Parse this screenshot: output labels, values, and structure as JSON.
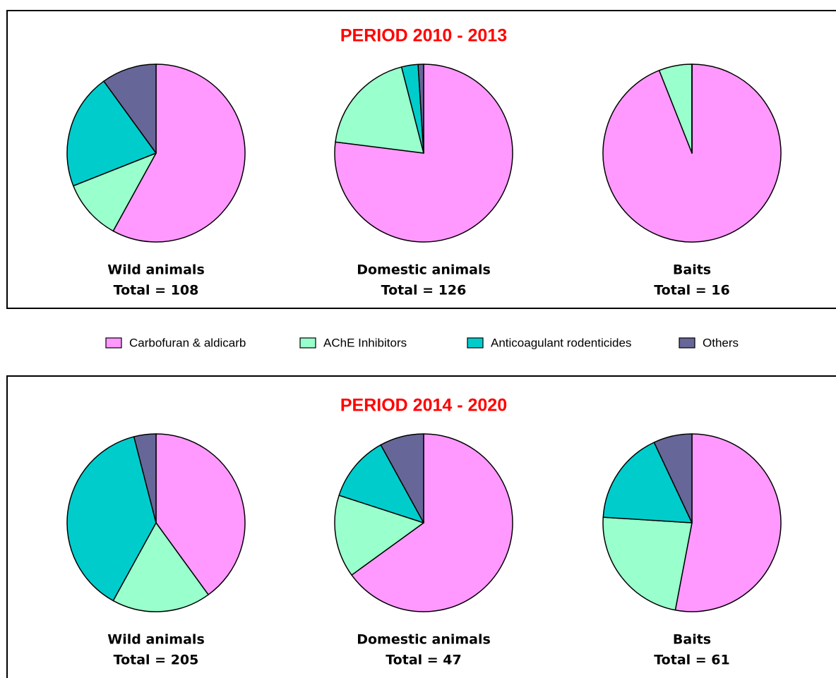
{
  "periods": [
    "PERIOD 2010 - 2013",
    "PERIOD 2014 - 2020"
  ],
  "chart_data": [
    {
      "type": "pie",
      "title": "Wild animals",
      "subtitle": "Total = 108",
      "categories": [
        "Carbofuran & aldicarb",
        "AChE Inhibitors",
        "Anticoagulant rodenticides",
        "Others"
      ],
      "colors": [
        "#ff99ff",
        "#99ffcc",
        "#00cccc",
        "#666699"
      ],
      "values": [
        58,
        11,
        21,
        10
      ]
    },
    {
      "type": "pie",
      "title": "Domestic animals",
      "subtitle": "Total = 126",
      "categories": [
        "Carbofuran & aldicarb",
        "AChE Inhibitors",
        "Anticoagulant rodenticides",
        "Others"
      ],
      "colors": [
        "#ff99ff",
        "#99ffcc",
        "#00cccc",
        "#666699"
      ],
      "values": [
        77,
        19,
        3,
        1
      ]
    },
    {
      "type": "pie",
      "title": "Baits",
      "subtitle": "Total = 16",
      "categories": [
        "Carbofuran & aldicarb",
        "AChE Inhibitors",
        "Anticoagulant rodenticides",
        "Others"
      ],
      "colors": [
        "#ff99ff",
        "#99ffcc",
        "#00cccc",
        "#666699"
      ],
      "values": [
        94,
        6,
        0,
        0
      ]
    },
    {
      "type": "pie",
      "title": "Wild animals",
      "subtitle": "Total = 205",
      "categories": [
        "Carbofuran & aldicarb",
        "AChE Inhibitors",
        "Anticoagulant rodenticides",
        "Others"
      ],
      "colors": [
        "#ff99ff",
        "#99ffcc",
        "#00cccc",
        "#666699"
      ],
      "values": [
        40,
        18,
        38,
        4
      ]
    },
    {
      "type": "pie",
      "title": "Domestic animals",
      "subtitle": "Total = 47",
      "categories": [
        "Carbofuran & aldicarb",
        "AChE Inhibitors",
        "Anticoagulant rodenticides",
        "Others"
      ],
      "colors": [
        "#ff99ff",
        "#99ffcc",
        "#00cccc",
        "#666699"
      ],
      "values": [
        65,
        15,
        12,
        8
      ]
    },
    {
      "type": "pie",
      "title": "Baits",
      "subtitle": "Total = 61",
      "categories": [
        "Carbofuran & aldicarb",
        "AChE Inhibitors",
        "Anticoagulant rodenticides",
        "Others"
      ],
      "colors": [
        "#ff99ff",
        "#99ffcc",
        "#00cccc",
        "#666699"
      ],
      "values": [
        53,
        23,
        17,
        7
      ]
    }
  ]
}
